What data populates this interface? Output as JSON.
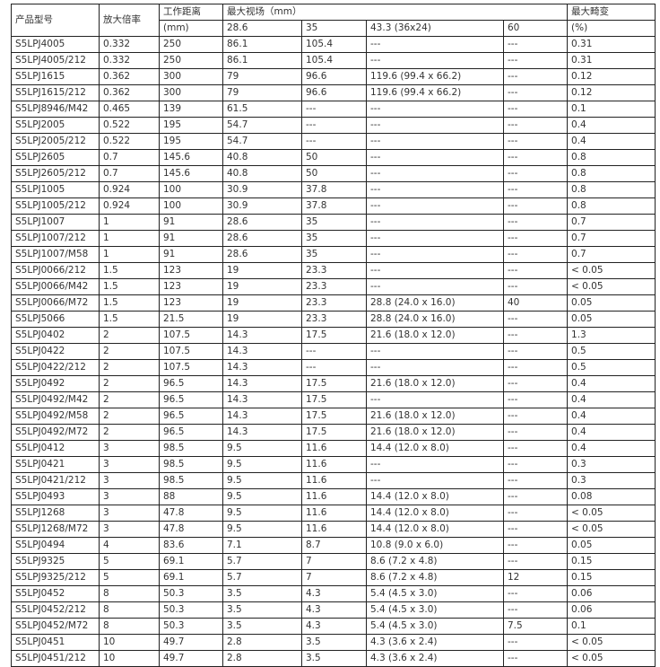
{
  "header": {
    "model": "产品型号",
    "magnification": "放大倍率",
    "working_distance": "工作距离",
    "wd_unit": "(mm)",
    "max_fov": "最大视场（mm）",
    "fov_cols": [
      "28.6",
      "35",
      "43.3 (36x24)",
      "60"
    ],
    "max_distortion": "最大畸变",
    "distortion_unit": "(%)"
  },
  "rows": [
    [
      "S5LPJ4005",
      "0.332",
      "250",
      "86.1",
      "105.4",
      "---",
      "---",
      "0.31"
    ],
    [
      "S5LPJ4005/212",
      "0.332",
      "250",
      "86.1",
      "105.4",
      "---",
      "---",
      "0.31"
    ],
    [
      "S5LPJ1615",
      "0.362",
      "300",
      "79",
      "96.6",
      "119.6 (99.4 x 66.2)",
      "---",
      "0.12"
    ],
    [
      "S5LPJ1615/212",
      "0.362",
      "300",
      "79",
      "96.6",
      "119.6 (99.4 x 66.2)",
      "---",
      "0.12"
    ],
    [
      "S5LPJ8946/M42",
      "0.465",
      "139",
      "61.5",
      "---",
      "---",
      "---",
      "0.1"
    ],
    [
      "S5LPJ2005",
      "0.522",
      "195",
      "54.7",
      "---",
      "---",
      "---",
      "0.4"
    ],
    [
      "S5LPJ2005/212",
      "0.522",
      "195",
      "54.7",
      "---",
      "---",
      "---",
      "0.4"
    ],
    [
      "S5LPJ2605",
      "0.7",
      "145.6",
      "40.8",
      "50",
      "---",
      "---",
      "0.8"
    ],
    [
      "S5LPJ2605/212",
      "0.7",
      "145.6",
      "40.8",
      "50",
      "---",
      "---",
      "0.8"
    ],
    [
      "S5LPJ1005",
      "0.924",
      "100",
      "30.9",
      "37.8",
      "---",
      "---",
      "0.8"
    ],
    [
      "S5LPJ1005/212",
      "0.924",
      "100",
      "30.9",
      "37.8",
      "---",
      "---",
      "0.8"
    ],
    [
      "S5LPJ1007",
      "1",
      "91",
      "28.6",
      "35",
      "---",
      "---",
      "0.7"
    ],
    [
      "S5LPJ1007/212",
      "1",
      "91",
      "28.6",
      "35",
      "---",
      "---",
      "0.7"
    ],
    [
      "S5LPJ1007/M58",
      "1",
      "91",
      "28.6",
      "35",
      "---",
      "---",
      "0.7"
    ],
    [
      "S5LPJ0066/212",
      "1.5",
      "123",
      "19",
      "23.3",
      "---",
      "---",
      "< 0.05"
    ],
    [
      "S5LPJ0066/M42",
      "1.5",
      "123",
      "19",
      "23.3",
      "---",
      "---",
      "< 0.05"
    ],
    [
      "S5LPJ0066/M72",
      "1.5",
      "123",
      "19",
      "23.3",
      "28.8 (24.0 x 16.0)",
      "40",
      "0.05"
    ],
    [
      "S5LPJ5066",
      "1.5",
      "21.5",
      "19",
      "23.3",
      "28.8 (24.0 x 16.0)",
      "---",
      "0.05"
    ],
    [
      "S5LPJ0402",
      "2",
      "107.5",
      "14.3",
      "17.5",
      "21.6 (18.0 x 12.0)",
      "---",
      "1.3"
    ],
    [
      "S5LPJ0422",
      "2",
      "107.5",
      "14.3",
      "---",
      "---",
      "---",
      "0.5"
    ],
    [
      "S5LPJ0422/212",
      "2",
      "107.5",
      "14.3",
      "---",
      "---",
      "---",
      "0.5"
    ],
    [
      "S5LPJ0492",
      "2",
      "96.5",
      "14.3",
      "17.5",
      "21.6 (18.0 x 12.0)",
      "---",
      "0.4"
    ],
    [
      "S5LPJ0492/M42",
      "2",
      "96.5",
      "14.3",
      "17.5",
      "---",
      "---",
      "0.4"
    ],
    [
      "S5LPJ0492/M58",
      "2",
      "96.5",
      "14.3",
      "17.5",
      "21.6 (18.0 x 12.0)",
      "---",
      "0.4"
    ],
    [
      "S5LPJ0492/M72",
      "2",
      "96.5",
      "14.3",
      "17.5",
      "21.6 (18.0 x 12.0)",
      "---",
      "0.4"
    ],
    [
      "S5LPJ0412",
      "3",
      "98.5",
      "9.5",
      "11.6",
      "14.4 (12.0 x 8.0)",
      "---",
      "0.4"
    ],
    [
      "S5LPJ0421",
      "3",
      "98.5",
      "9.5",
      "11.6",
      "---",
      "---",
      "0.3"
    ],
    [
      "S5LPJ0421/212",
      "3",
      "98.5",
      "9.5",
      "11.6",
      "---",
      "---",
      "0.3"
    ],
    [
      "S5LPJ0493",
      "3",
      "88",
      "9.5",
      "11.6",
      "14.4 (12.0 x 8.0)",
      "---",
      "0.08"
    ],
    [
      "S5LPJ1268",
      "3",
      "47.8",
      "9.5",
      "11.6",
      "14.4 (12.0 x 8.0)",
      "---",
      "< 0.05"
    ],
    [
      "S5LPJ1268/M72",
      "3",
      "47.8",
      "9.5",
      "11.6",
      "14.4 (12.0 x 8.0)",
      "---",
      "< 0.05"
    ],
    [
      "S5LPJ0494",
      "4",
      "83.6",
      "7.1",
      "8.7",
      "10.8 (9.0 x 6.0)",
      "---",
      "0.05"
    ],
    [
      "S5LPJ9325",
      "5",
      "69.1",
      "5.7",
      "7",
      "8.6 (7.2 x 4.8)",
      "---",
      "0.15"
    ],
    [
      "S5LPJ9325/212",
      "5",
      "69.1",
      "5.7",
      "7",
      "8.6 (7.2 x 4.8)",
      "12",
      "0.15"
    ],
    [
      "S5LPJ0452",
      "8",
      "50.3",
      "3.5",
      "4.3",
      "5.4 (4.5 x 3.0)",
      "---",
      "0.06"
    ],
    [
      "S5LPJ0452/212",
      "8",
      "50.3",
      "3.5",
      "4.3",
      "5.4 (4.5 x 3.0)",
      "---",
      "0.06"
    ],
    [
      "S5LPJ0452/M72",
      "8",
      "50.3",
      "3.5",
      "4.3",
      "5.4 (4.5 x 3.0)",
      "7.5",
      "0.1"
    ],
    [
      "S5LPJ0451",
      "10",
      "49.7",
      "2.8",
      "3.5",
      "4.3 (3.6 x 2.4)",
      "---",
      "< 0.05"
    ],
    [
      "S5LPJ0451/212",
      "10",
      "49.7",
      "2.8",
      "3.5",
      "4.3 (3.6 x 2.4)",
      "---",
      "< 0.05"
    ]
  ]
}
